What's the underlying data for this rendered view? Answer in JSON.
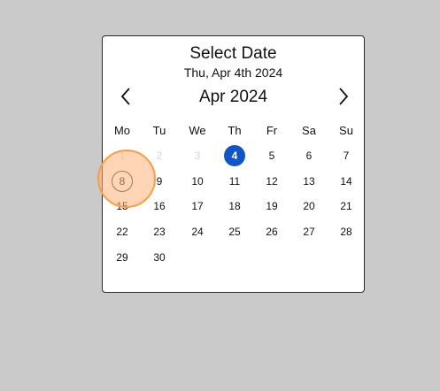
{
  "dialog": {
    "title": "Select Date",
    "subtitle": "Thu, Apr 4th 2024",
    "month_label": "Apr 2024",
    "prev_icon": "chevron-left-icon",
    "next_icon": "chevron-right-icon"
  },
  "weekdays": [
    "Mo",
    "Tu",
    "We",
    "Th",
    "Fr",
    "Sa",
    "Su"
  ],
  "weeks": [
    [
      {
        "d": "1",
        "muted": true
      },
      {
        "d": "2",
        "muted": true
      },
      {
        "d": "3",
        "muted": true
      },
      {
        "d": "4",
        "selected": true
      },
      {
        "d": "5"
      },
      {
        "d": "6"
      },
      {
        "d": "7"
      }
    ],
    [
      {
        "d": "8",
        "focused": true
      },
      {
        "d": "9"
      },
      {
        "d": "10"
      },
      {
        "d": "11"
      },
      {
        "d": "12"
      },
      {
        "d": "13"
      },
      {
        "d": "14"
      }
    ],
    [
      {
        "d": "15"
      },
      {
        "d": "16"
      },
      {
        "d": "17"
      },
      {
        "d": "18"
      },
      {
        "d": "19"
      },
      {
        "d": "20"
      },
      {
        "d": "21"
      }
    ],
    [
      {
        "d": "22"
      },
      {
        "d": "23"
      },
      {
        "d": "24"
      },
      {
        "d": "25"
      },
      {
        "d": "26"
      },
      {
        "d": "27"
      },
      {
        "d": "28"
      }
    ],
    [
      {
        "d": "29"
      },
      {
        "d": "30"
      }
    ]
  ],
  "colors": {
    "selected": "#1155c4",
    "highlight": "#f5a048",
    "backdrop": "#cacaca"
  }
}
